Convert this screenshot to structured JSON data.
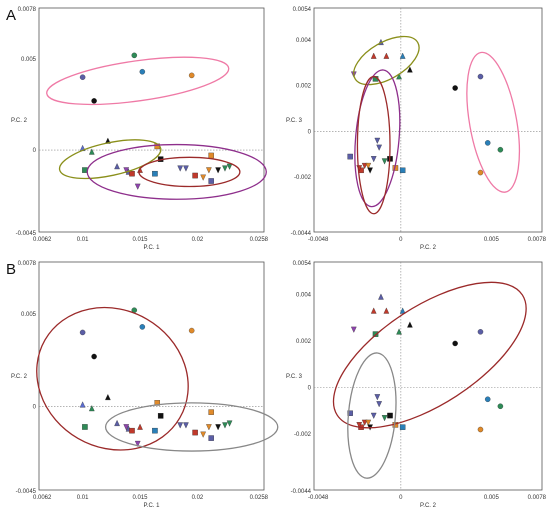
{
  "panels": [
    {
      "label": "A"
    },
    {
      "label": "B"
    }
  ],
  "chart_data": [
    {
      "type": "scatter",
      "xlabel": "P.C. 1",
      "ylabel": "P.C. 2",
      "xlim": [
        0.0062,
        0.0258
      ],
      "ylim": [
        -0.0045,
        0.0078
      ],
      "xticks": [
        "0.0062",
        "0.01",
        "0.015",
        "0.02",
        "0.0258"
      ],
      "yticks": [
        "-0.0045",
        "0",
        "0.005",
        "0.0078"
      ],
      "points": [
        {
          "x": 0.01,
          "y": 0.004,
          "shape": "circle",
          "color": "#5b5ea6"
        },
        {
          "x": 0.011,
          "y": 0.0027,
          "shape": "circle",
          "color": "#111111"
        },
        {
          "x": 0.0145,
          "y": 0.0052,
          "shape": "circle",
          "color": "#2e8b57"
        },
        {
          "x": 0.0152,
          "y": 0.0043,
          "shape": "circle",
          "color": "#2a7fb8"
        },
        {
          "x": 0.0195,
          "y": 0.0041,
          "shape": "circle",
          "color": "#e08a2a"
        },
        {
          "x": 0.01,
          "y": 0.0001,
          "shape": "triangle-up",
          "color": "#5b6ccf"
        },
        {
          "x": 0.0108,
          "y": -0.0001,
          "shape": "triangle-up",
          "color": "#2e8b57"
        },
        {
          "x": 0.0122,
          "y": 0.0005,
          "shape": "triangle-up",
          "color": "#111111"
        },
        {
          "x": 0.013,
          "y": -0.0009,
          "shape": "triangle-up",
          "color": "#5b5ea6"
        },
        {
          "x": 0.014,
          "y": -0.0012,
          "shape": "triangle-up",
          "color": "#5b5ea6"
        },
        {
          "x": 0.015,
          "y": -0.0011,
          "shape": "triangle-up",
          "color": "#c0392b"
        },
        {
          "x": 0.0102,
          "y": -0.0011,
          "shape": "square",
          "color": "#2e8b57"
        },
        {
          "x": 0.0143,
          "y": -0.0013,
          "shape": "square",
          "color": "#c0392b"
        },
        {
          "x": 0.0165,
          "y": 0.0002,
          "shape": "square",
          "color": "#e08a2a"
        },
        {
          "x": 0.0168,
          "y": -0.0005,
          "shape": "square",
          "color": "#111111"
        },
        {
          "x": 0.0163,
          "y": -0.0013,
          "shape": "square",
          "color": "#2a7fb8"
        },
        {
          "x": 0.0198,
          "y": -0.0014,
          "shape": "square",
          "color": "#c0392b"
        },
        {
          "x": 0.0212,
          "y": -0.0003,
          "shape": "square",
          "color": "#e08a2a"
        },
        {
          "x": 0.0212,
          "y": -0.0017,
          "shape": "square",
          "color": "#5b5ea6"
        },
        {
          "x": 0.0138,
          "y": -0.0011,
          "shape": "triangle-down",
          "color": "#8e44ad"
        },
        {
          "x": 0.0148,
          "y": -0.002,
          "shape": "triangle-down",
          "color": "#8e44ad"
        },
        {
          "x": 0.0185,
          "y": -0.001,
          "shape": "triangle-down",
          "color": "#5b5ea6"
        },
        {
          "x": 0.019,
          "y": -0.001,
          "shape": "triangle-down",
          "color": "#5b5ea6"
        },
        {
          "x": 0.021,
          "y": -0.0011,
          "shape": "triangle-down",
          "color": "#e08a2a"
        },
        {
          "x": 0.0218,
          "y": -0.0011,
          "shape": "triangle-down",
          "color": "#111111"
        },
        {
          "x": 0.0224,
          "y": -0.001,
          "shape": "triangle-down",
          "color": "#2e8b57"
        },
        {
          "x": 0.0228,
          "y": -0.0009,
          "shape": "triangle-down",
          "color": "#2e8b57"
        },
        {
          "x": 0.0205,
          "y": -0.0015,
          "shape": "triangle-down",
          "color": "#e08a2a"
        }
      ],
      "ellipses": [
        {
          "cx": 0.0148,
          "cy": 0.0038,
          "rx": 0.008,
          "ry": 0.0011,
          "rot": -8,
          "color": "#ef7aa6"
        },
        {
          "cx": 0.0124,
          "cy": -0.0005,
          "rx": 0.0045,
          "ry": 0.0009,
          "rot": -12,
          "color": "#8a8f1a"
        },
        {
          "cx": 0.0182,
          "cy": -0.0012,
          "rx": 0.0078,
          "ry": 0.0015,
          "rot": 0,
          "color": "#8e2f8c"
        },
        {
          "cx": 0.0193,
          "cy": -0.0012,
          "rx": 0.0044,
          "ry": 0.0008,
          "rot": 0,
          "color": "#9b2a2a"
        }
      ]
    },
    {
      "type": "scatter",
      "xlabel": "P.C. 2",
      "ylabel": "P.C. 3",
      "xlim": [
        -0.0048,
        0.0078
      ],
      "ylim": [
        -0.0044,
        0.0054
      ],
      "xticks": [
        "-0.0048",
        "0",
        "0.005",
        "0.0078"
      ],
      "yticks": [
        "-0.0044",
        "-0.002",
        "0",
        "0.002",
        "0.004",
        "0.0054"
      ],
      "points": [
        {
          "x": 0.003,
          "y": 0.0019,
          "shape": "circle",
          "color": "#111111"
        },
        {
          "x": 0.0044,
          "y": 0.0024,
          "shape": "circle",
          "color": "#5b5ea6"
        },
        {
          "x": 0.0048,
          "y": -0.0005,
          "shape": "circle",
          "color": "#2a7fb8"
        },
        {
          "x": 0.0055,
          "y": -0.0008,
          "shape": "circle",
          "color": "#2e8b57"
        },
        {
          "x": 0.0044,
          "y": -0.0018,
          "shape": "circle",
          "color": "#e08a2a"
        },
        {
          "x": -0.0011,
          "y": 0.0039,
          "shape": "triangle-up",
          "color": "#5b5ea6"
        },
        {
          "x": -0.0015,
          "y": 0.0033,
          "shape": "triangle-up",
          "color": "#c0392b"
        },
        {
          "x": -0.0008,
          "y": 0.0033,
          "shape": "triangle-up",
          "color": "#c0392b"
        },
        {
          "x": 0.0001,
          "y": 0.0033,
          "shape": "triangle-up",
          "color": "#2a7fb8"
        },
        {
          "x": 0.0005,
          "y": 0.0027,
          "shape": "triangle-up",
          "color": "#111111"
        },
        {
          "x": -0.0001,
          "y": 0.0024,
          "shape": "triangle-up",
          "color": "#2e8b57"
        },
        {
          "x": -0.0014,
          "y": 0.0023,
          "shape": "square",
          "color": "#2e8b57"
        },
        {
          "x": -0.0028,
          "y": -0.0011,
          "shape": "square",
          "color": "#5b5ea6"
        },
        {
          "x": -0.0006,
          "y": -0.0012,
          "shape": "square",
          "color": "#111111"
        },
        {
          "x": -0.0003,
          "y": -0.0016,
          "shape": "square",
          "color": "#e08a2a"
        },
        {
          "x": 0.0001,
          "y": -0.0017,
          "shape": "square",
          "color": "#2a7fb8"
        },
        {
          "x": -0.0022,
          "y": -0.0017,
          "shape": "square",
          "color": "#c0392b"
        },
        {
          "x": -0.0023,
          "y": -0.0016,
          "shape": "triangle-down",
          "color": "#c0392b"
        },
        {
          "x": -0.002,
          "y": -0.0015,
          "shape": "triangle-down",
          "color": "#c0392b"
        },
        {
          "x": -0.0018,
          "y": -0.0015,
          "shape": "triangle-down",
          "color": "#e08a2a"
        },
        {
          "x": -0.0015,
          "y": -0.0012,
          "shape": "triangle-down",
          "color": "#5b5ea6"
        },
        {
          "x": -0.0012,
          "y": -0.0007,
          "shape": "triangle-down",
          "color": "#5b5ea6"
        },
        {
          "x": -0.0013,
          "y": -0.0004,
          "shape": "triangle-down",
          "color": "#5b5ea6"
        },
        {
          "x": -0.0009,
          "y": -0.0013,
          "shape": "triangle-down",
          "color": "#2e8b57"
        },
        {
          "x": -0.0026,
          "y": 0.0025,
          "shape": "triangle-down",
          "color": "#8e44ad"
        },
        {
          "x": -0.0017,
          "y": -0.0017,
          "shape": "triangle-down",
          "color": "#111111"
        }
      ],
      "ellipses": [
        {
          "cx": -0.0008,
          "cy": 0.0031,
          "rx": 0.002,
          "ry": 0.0008,
          "rot": -30,
          "color": "#8a8f1a"
        },
        {
          "cx": 0.0051,
          "cy": 0.0004,
          "rx": 0.0013,
          "ry": 0.0031,
          "rot": -10,
          "color": "#ef7aa6"
        },
        {
          "cx": -0.0013,
          "cy": -0.0003,
          "rx": 0.0012,
          "ry": 0.003,
          "rot": 5,
          "color": "#8e2f8c"
        },
        {
          "cx": -0.0015,
          "cy": -0.0006,
          "rx": 0.0009,
          "ry": 0.003,
          "rot": 0,
          "color": "#9b2a2a"
        }
      ]
    },
    {
      "type": "scatter",
      "xlabel": "P.C. 1",
      "ylabel": "P.C. 2",
      "xlim": [
        0.0062,
        0.0258
      ],
      "ylim": [
        -0.0045,
        0.0078
      ],
      "xticks": [
        "0.0062",
        "0.01",
        "0.015",
        "0.02",
        "0.0258"
      ],
      "yticks": [
        "-0.0045",
        "0",
        "0.005",
        "0.0078"
      ],
      "points": [
        {
          "x": 0.01,
          "y": 0.004,
          "shape": "circle",
          "color": "#5b5ea6"
        },
        {
          "x": 0.011,
          "y": 0.0027,
          "shape": "circle",
          "color": "#111111"
        },
        {
          "x": 0.0145,
          "y": 0.0052,
          "shape": "circle",
          "color": "#2e8b57"
        },
        {
          "x": 0.0152,
          "y": 0.0043,
          "shape": "circle",
          "color": "#2a7fb8"
        },
        {
          "x": 0.0195,
          "y": 0.0041,
          "shape": "circle",
          "color": "#e08a2a"
        },
        {
          "x": 0.01,
          "y": 0.0001,
          "shape": "triangle-up",
          "color": "#5b6ccf"
        },
        {
          "x": 0.0108,
          "y": -0.0001,
          "shape": "triangle-up",
          "color": "#2e8b57"
        },
        {
          "x": 0.0122,
          "y": 0.0005,
          "shape": "triangle-up",
          "color": "#111111"
        },
        {
          "x": 0.013,
          "y": -0.0009,
          "shape": "triangle-up",
          "color": "#5b5ea6"
        },
        {
          "x": 0.014,
          "y": -0.0012,
          "shape": "triangle-up",
          "color": "#5b5ea6"
        },
        {
          "x": 0.015,
          "y": -0.0011,
          "shape": "triangle-up",
          "color": "#c0392b"
        },
        {
          "x": 0.0102,
          "y": -0.0011,
          "shape": "square",
          "color": "#2e8b57"
        },
        {
          "x": 0.0143,
          "y": -0.0013,
          "shape": "square",
          "color": "#c0392b"
        },
        {
          "x": 0.0165,
          "y": 0.0002,
          "shape": "square",
          "color": "#e08a2a"
        },
        {
          "x": 0.0168,
          "y": -0.0005,
          "shape": "square",
          "color": "#111111"
        },
        {
          "x": 0.0163,
          "y": -0.0013,
          "shape": "square",
          "color": "#2a7fb8"
        },
        {
          "x": 0.0198,
          "y": -0.0014,
          "shape": "square",
          "color": "#c0392b"
        },
        {
          "x": 0.0212,
          "y": -0.0003,
          "shape": "square",
          "color": "#e08a2a"
        },
        {
          "x": 0.0212,
          "y": -0.0017,
          "shape": "square",
          "color": "#5b5ea6"
        },
        {
          "x": 0.0138,
          "y": -0.0011,
          "shape": "triangle-down",
          "color": "#8e44ad"
        },
        {
          "x": 0.0148,
          "y": -0.002,
          "shape": "triangle-down",
          "color": "#8e44ad"
        },
        {
          "x": 0.0185,
          "y": -0.001,
          "shape": "triangle-down",
          "color": "#5b5ea6"
        },
        {
          "x": 0.019,
          "y": -0.001,
          "shape": "triangle-down",
          "color": "#5b5ea6"
        },
        {
          "x": 0.021,
          "y": -0.0011,
          "shape": "triangle-down",
          "color": "#e08a2a"
        },
        {
          "x": 0.0218,
          "y": -0.0011,
          "shape": "triangle-down",
          "color": "#111111"
        },
        {
          "x": 0.0224,
          "y": -0.001,
          "shape": "triangle-down",
          "color": "#2e8b57"
        },
        {
          "x": 0.0228,
          "y": -0.0009,
          "shape": "triangle-down",
          "color": "#2e8b57"
        },
        {
          "x": 0.0205,
          "y": -0.0015,
          "shape": "triangle-down",
          "color": "#e08a2a"
        }
      ],
      "ellipses": [
        {
          "cx": 0.0126,
          "cy": 0.0015,
          "rx": 0.006,
          "ry": 0.0042,
          "rot": -60,
          "color": "#9b2a2a"
        },
        {
          "cx": 0.0195,
          "cy": -0.0011,
          "rx": 0.0075,
          "ry": 0.0013,
          "rot": 0,
          "color": "#888888"
        }
      ]
    },
    {
      "type": "scatter",
      "xlabel": "P.C. 2",
      "ylabel": "P.C. 3",
      "xlim": [
        -0.0048,
        0.0078
      ],
      "ylim": [
        -0.0044,
        0.0054
      ],
      "xticks": [
        "-0.0048",
        "0",
        "0.005",
        "0.0078"
      ],
      "yticks": [
        "-0.0044",
        "-0.002",
        "0",
        "0.002",
        "0.004",
        "0.0054"
      ],
      "points": [
        {
          "x": 0.003,
          "y": 0.0019,
          "shape": "circle",
          "color": "#111111"
        },
        {
          "x": 0.0044,
          "y": 0.0024,
          "shape": "circle",
          "color": "#5b5ea6"
        },
        {
          "x": 0.0048,
          "y": -0.0005,
          "shape": "circle",
          "color": "#2a7fb8"
        },
        {
          "x": 0.0055,
          "y": -0.0008,
          "shape": "circle",
          "color": "#2e8b57"
        },
        {
          "x": 0.0044,
          "y": -0.0018,
          "shape": "circle",
          "color": "#e08a2a"
        },
        {
          "x": -0.0011,
          "y": 0.0039,
          "shape": "triangle-up",
          "color": "#5b5ea6"
        },
        {
          "x": -0.0015,
          "y": 0.0033,
          "shape": "triangle-up",
          "color": "#c0392b"
        },
        {
          "x": -0.0008,
          "y": 0.0033,
          "shape": "triangle-up",
          "color": "#c0392b"
        },
        {
          "x": 0.0001,
          "y": 0.0033,
          "shape": "triangle-up",
          "color": "#2a7fb8"
        },
        {
          "x": 0.0005,
          "y": 0.0027,
          "shape": "triangle-up",
          "color": "#111111"
        },
        {
          "x": -0.0001,
          "y": 0.0024,
          "shape": "triangle-up",
          "color": "#2e8b57"
        },
        {
          "x": -0.0014,
          "y": 0.0023,
          "shape": "square",
          "color": "#2e8b57"
        },
        {
          "x": -0.0028,
          "y": -0.0011,
          "shape": "square",
          "color": "#5b5ea6"
        },
        {
          "x": -0.0006,
          "y": -0.0012,
          "shape": "square",
          "color": "#111111"
        },
        {
          "x": -0.0003,
          "y": -0.0016,
          "shape": "square",
          "color": "#e08a2a"
        },
        {
          "x": 0.0001,
          "y": -0.0017,
          "shape": "square",
          "color": "#2a7fb8"
        },
        {
          "x": -0.0022,
          "y": -0.0017,
          "shape": "square",
          "color": "#c0392b"
        },
        {
          "x": -0.0023,
          "y": -0.0016,
          "shape": "triangle-down",
          "color": "#c0392b"
        },
        {
          "x": -0.002,
          "y": -0.0015,
          "shape": "triangle-down",
          "color": "#c0392b"
        },
        {
          "x": -0.0018,
          "y": -0.0015,
          "shape": "triangle-down",
          "color": "#e08a2a"
        },
        {
          "x": -0.0015,
          "y": -0.0012,
          "shape": "triangle-down",
          "color": "#5b5ea6"
        },
        {
          "x": -0.0012,
          "y": -0.0007,
          "shape": "triangle-down",
          "color": "#5b5ea6"
        },
        {
          "x": -0.0013,
          "y": -0.0004,
          "shape": "triangle-down",
          "color": "#5b5ea6"
        },
        {
          "x": -0.0009,
          "y": -0.0013,
          "shape": "triangle-down",
          "color": "#2e8b57"
        },
        {
          "x": -0.0026,
          "y": 0.0025,
          "shape": "triangle-down",
          "color": "#8e44ad"
        },
        {
          "x": -0.0017,
          "y": -0.0017,
          "shape": "triangle-down",
          "color": "#111111"
        }
      ],
      "ellipses": [
        {
          "cx": 0.0016,
          "cy": 0.0014,
          "rx": 0.0061,
          "ry": 0.0021,
          "rot": -33,
          "color": "#9b2a2a"
        },
        {
          "cx": -0.0016,
          "cy": -0.0012,
          "rx": 0.0013,
          "ry": 0.0027,
          "rot": 5,
          "color": "#888888"
        }
      ]
    }
  ]
}
